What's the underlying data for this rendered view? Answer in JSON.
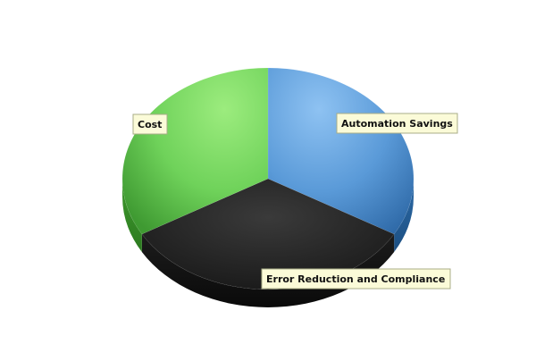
{
  "chart_data": {
    "type": "pie",
    "slices": [
      {
        "label": "Automation Savings",
        "value": 33.3,
        "color": "#4e8fd0"
      },
      {
        "label": "Error Reduction and Compliance",
        "value": 33.3,
        "color": "#262626"
      },
      {
        "label": "Cost",
        "value": 33.3,
        "color": "#5fc34a"
      }
    ],
    "legend": "none"
  }
}
